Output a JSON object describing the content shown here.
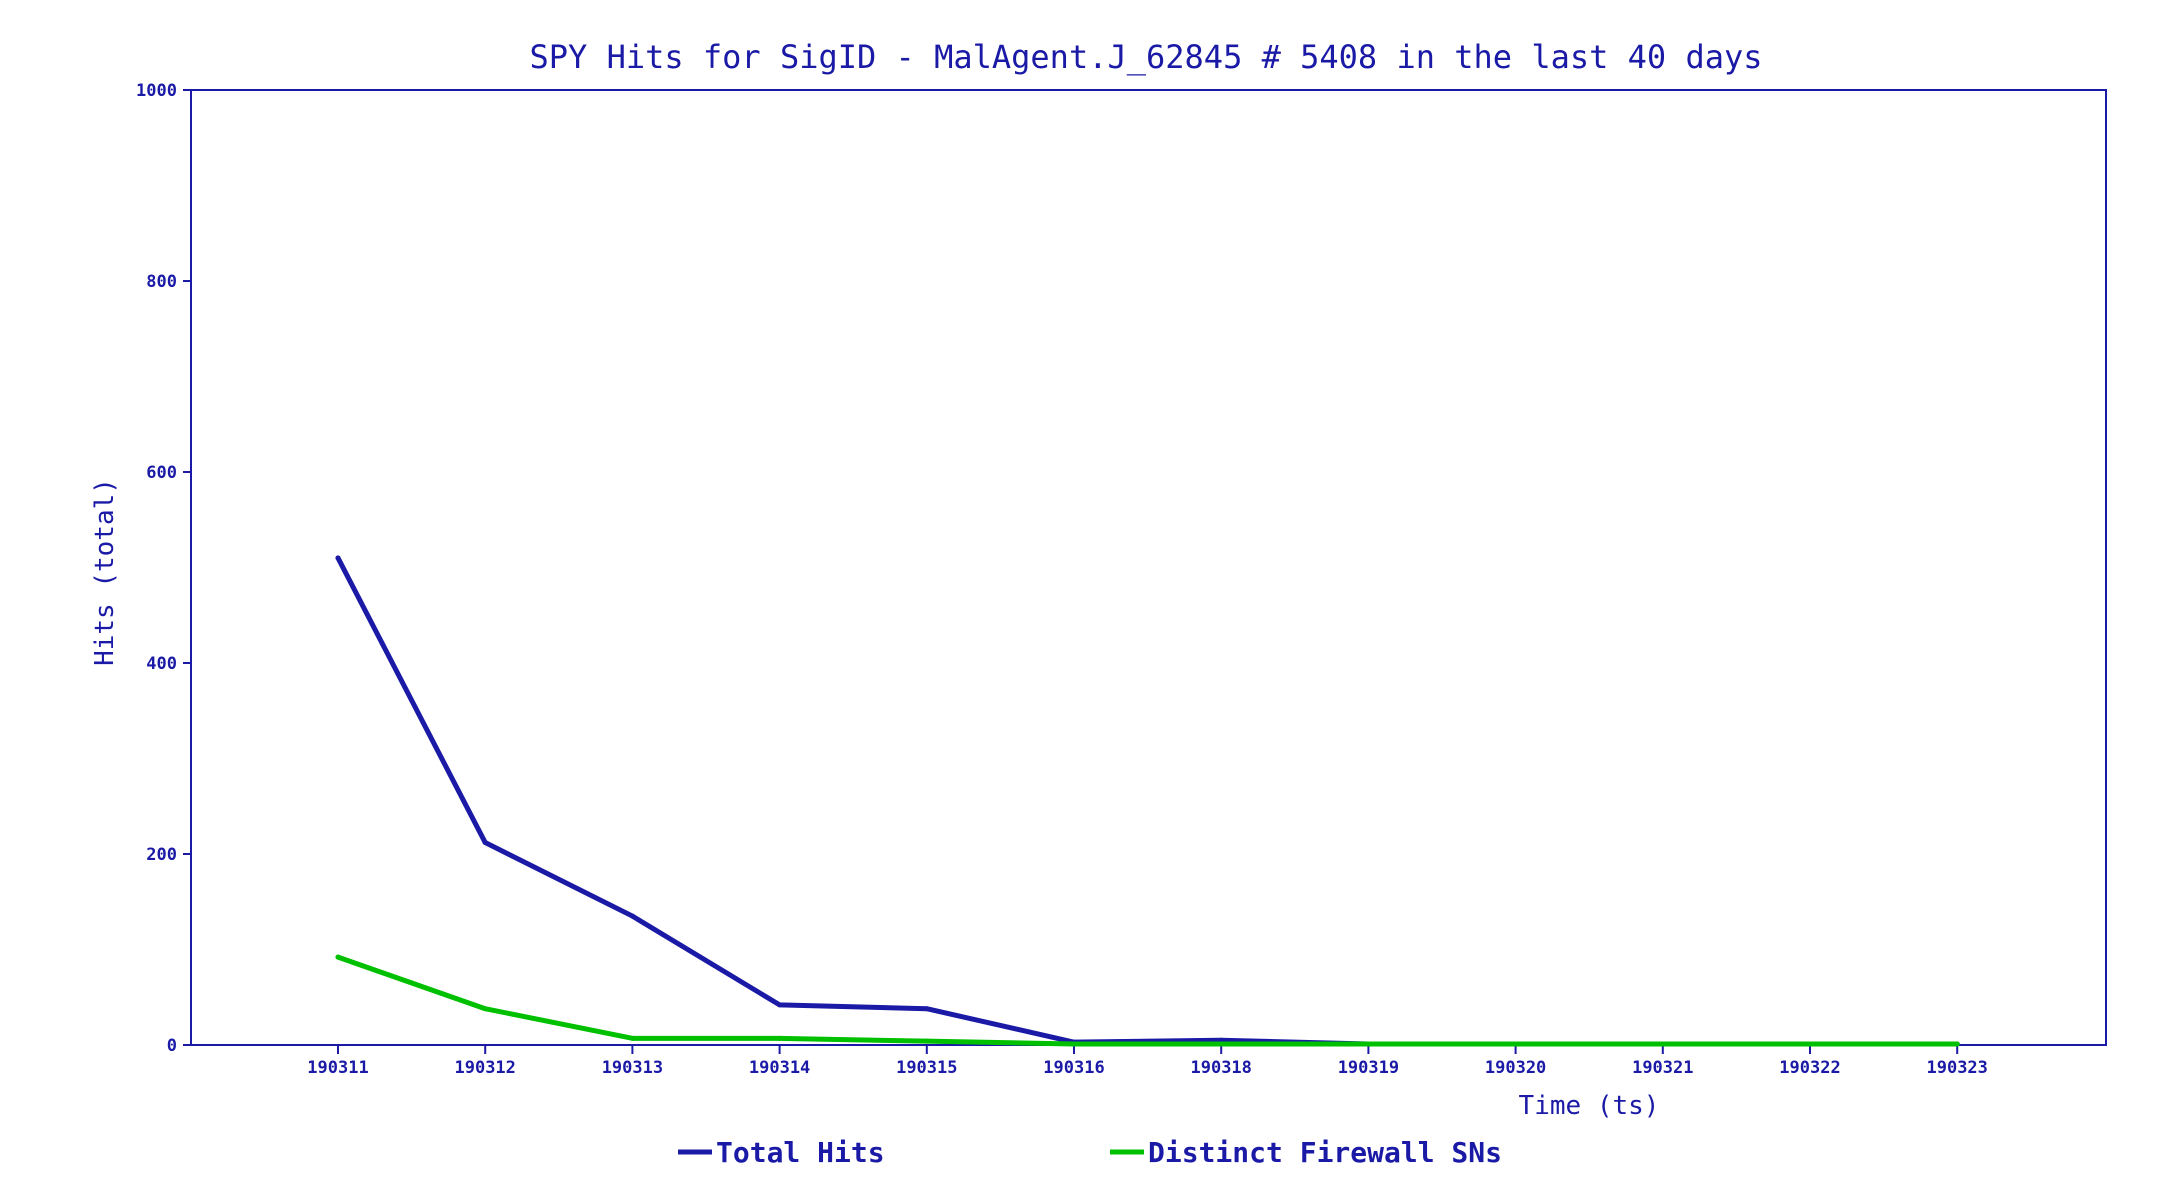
{
  "chart_data": {
    "type": "line",
    "title": "SPY Hits for SigID - MalAgent.J_62845 # 5408 in the last 40 days",
    "xlabel": "Time (ts)",
    "ylabel": "Hits (total)",
    "ylim": [
      0,
      1000
    ],
    "yticks": [
      "0",
      "200",
      "400",
      "600",
      "800",
      "1000"
    ],
    "categories": [
      "190311",
      "190312",
      "190313",
      "190314",
      "190315",
      "190316",
      "190318",
      "190319",
      "190320",
      "190321",
      "190322",
      "190323"
    ],
    "grid": false,
    "legend_position": "bottom",
    "series": [
      {
        "name": "Total Hits",
        "color": "#1a1aa6",
        "values": [
          510,
          212,
          135,
          42,
          38,
          3,
          5,
          1,
          1,
          1,
          1,
          1
        ]
      },
      {
        "name": "Distinct Firewall SNs",
        "color": "#00c000",
        "values": [
          92,
          38,
          7,
          7,
          4,
          1,
          1,
          1,
          1,
          1,
          1,
          1
        ]
      }
    ]
  }
}
